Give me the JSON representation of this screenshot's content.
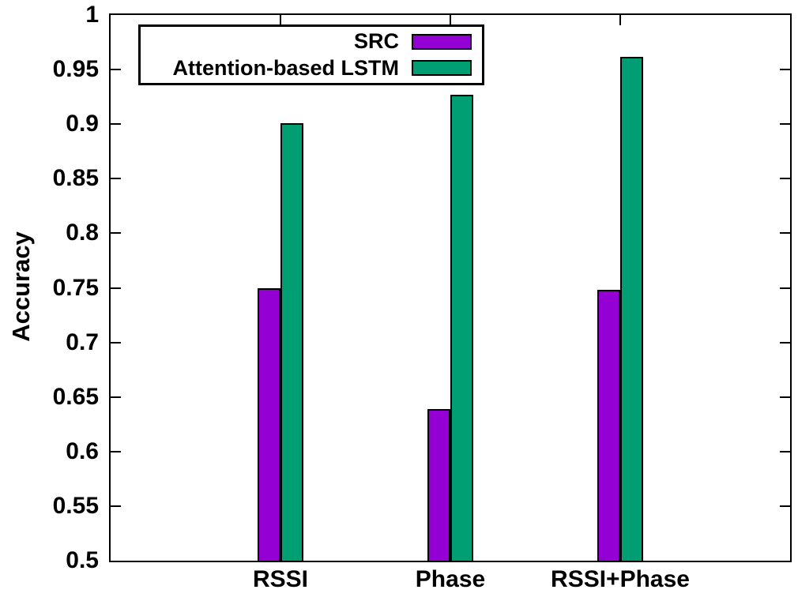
{
  "chart_data": {
    "type": "bar",
    "title": "",
    "ylabel": "Accuracy",
    "xlabel": "",
    "categories": [
      "RSSI",
      "Phase",
      "RSSI+Phase"
    ],
    "series": [
      {
        "name": "SRC",
        "color": "#9400D3",
        "values": [
          0.75,
          0.639,
          0.748
        ]
      },
      {
        "name": "Attention-based LSTM",
        "color": "#009E73",
        "values": [
          0.901,
          0.927,
          0.962
        ]
      }
    ],
    "ylim": [
      0.5,
      1.0
    ],
    "ytick_step": 0.05,
    "ytick_labels": [
      "0.5",
      "0.55",
      "0.6",
      "0.65",
      "0.7",
      "0.75",
      "0.8",
      "0.85",
      "0.9",
      "0.95",
      "1"
    ],
    "grid": false,
    "legend_position": "top-left-inside",
    "axis_color": "#000000",
    "bar_border_color": "#000000",
    "text_color": "#000000"
  }
}
